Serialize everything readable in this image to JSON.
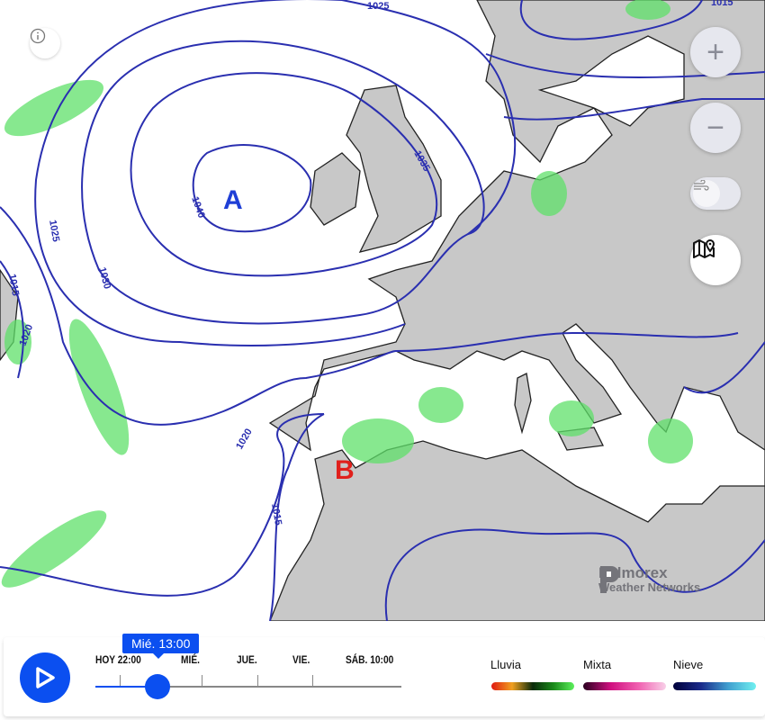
{
  "map": {
    "isobars": [
      "1025",
      "1015",
      "1035",
      "1040",
      "1025",
      "1030",
      "1015",
      "1020",
      "1020",
      "1015"
    ],
    "high_label": "A",
    "low_label": "B",
    "high_color": "#1f3fd6",
    "low_color": "#e0201c",
    "isobar_color": "#2a2fb0",
    "land_color": "#c8c8c8",
    "sea_color": "#ffffff",
    "precip_color": "#5fe06a"
  },
  "controls": {
    "zoom_in": "+",
    "zoom_out": "−",
    "info_icon": "info-icon",
    "wind_icon": "wind-icon",
    "map_icon": "map-pin-icon"
  },
  "logo": {
    "line1": "Pelmorex",
    "line2": "Weather Networks"
  },
  "timeline": {
    "current": "Mié. 13:00",
    "labels": [
      "HOY 22:00",
      "MIÉ.",
      "JUE.",
      "VIE.",
      "SÁB. 10:00"
    ],
    "progress_percent": 20,
    "accent": "#0b4ff0"
  },
  "legend": [
    {
      "label": "Lluvia",
      "gradient": [
        "#e01a12",
        "#f0a020",
        "#0a2a0a",
        "#1a8a1a",
        "#5cf05c"
      ]
    },
    {
      "label": "Mixta",
      "gradient": [
        "#2a0020",
        "#d01080",
        "#f060b0",
        "#f8d0e8"
      ]
    },
    {
      "label": "Nieve",
      "gradient": [
        "#00003a",
        "#1a2a8a",
        "#40a0d0",
        "#70f0f0"
      ]
    }
  ]
}
